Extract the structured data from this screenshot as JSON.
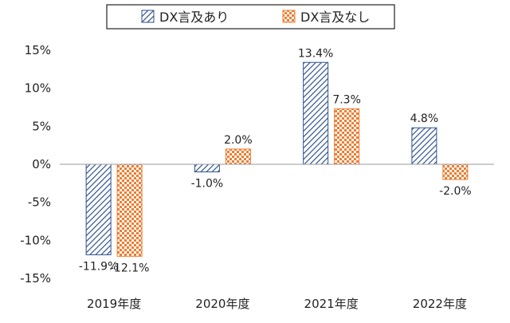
{
  "chart_data": {
    "type": "bar",
    "categories": [
      "2019年度",
      "2020年度",
      "2021年度",
      "2022年度"
    ],
    "series": [
      {
        "name": "DX言及あり",
        "values": [
          -11.9,
          -1.0,
          13.4,
          4.8
        ],
        "labels": [
          "-11.9%",
          "-1.0%",
          "13.4%",
          "4.8%"
        ],
        "color": "#2F528F",
        "pattern": "diagonal-hatch"
      },
      {
        "name": "DX言及なし",
        "values": [
          -12.1,
          2.0,
          7.3,
          -2.0
        ],
        "labels": [
          "-12.1%",
          "2.0%",
          "7.3%",
          "-2.0%"
        ],
        "color": "#ED7D31",
        "pattern": "checker"
      }
    ],
    "yticks": [
      15,
      10,
      5,
      0,
      -5,
      -10,
      -15
    ],
    "ytick_labels": [
      "15%",
      "10%",
      "5%",
      "0%",
      "-5%",
      "-10%",
      "-15%"
    ],
    "ylim": [
      -15,
      15
    ],
    "grid": false,
    "legend_position": "top"
  }
}
